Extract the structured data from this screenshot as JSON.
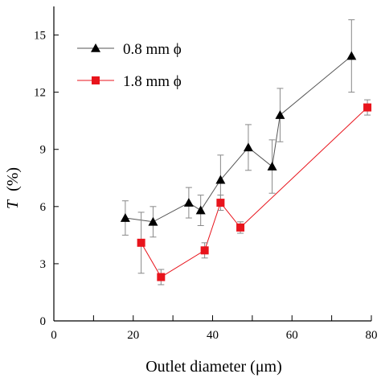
{
  "chart_data": {
    "type": "scatter",
    "xlabel": "Outlet diameter (μm)",
    "ylabel_italic": "T",
    "ylabel_unit": "(%)",
    "xlim": [
      0,
      80
    ],
    "ylim": [
      0,
      16.5
    ],
    "xticks": [
      0,
      20,
      40,
      60,
      80
    ],
    "xminor": [
      10,
      30,
      50,
      70
    ],
    "yticks": [
      0,
      3,
      6,
      9,
      12,
      15
    ],
    "grid": false,
    "legend_position": "top-left",
    "series": [
      {
        "name": "0.8 mm ϕ",
        "color": "#000000",
        "line_color": "#555555",
        "marker": "triangle",
        "points": [
          {
            "x": 18,
            "y": 5.4,
            "err": 0.9
          },
          {
            "x": 25,
            "y": 5.2,
            "err": 0.8
          },
          {
            "x": 34,
            "y": 6.2,
            "err": 0.8
          },
          {
            "x": 37,
            "y": 5.8,
            "err": 0.8
          },
          {
            "x": 42,
            "y": 7.4,
            "err": 1.3
          },
          {
            "x": 49,
            "y": 9.1,
            "err": 1.2
          },
          {
            "x": 55,
            "y": 8.1,
            "err": 1.4
          },
          {
            "x": 57,
            "y": 10.8,
            "err": 1.4
          },
          {
            "x": 75,
            "y": 13.9,
            "err": 1.9
          }
        ]
      },
      {
        "name": "1.8 mm ϕ",
        "color": "#e8141c",
        "line_color": "#e8141c",
        "marker": "square",
        "points": [
          {
            "x": 22,
            "y": 4.1,
            "err": 1.6
          },
          {
            "x": 27,
            "y": 2.3,
            "err": 0.4
          },
          {
            "x": 38,
            "y": 3.7,
            "err": 0.4
          },
          {
            "x": 42,
            "y": 6.2,
            "err": 0.4
          },
          {
            "x": 47,
            "y": 4.9,
            "err": 0.3
          },
          {
            "x": 79,
            "y": 11.2,
            "err": 0.4
          }
        ]
      }
    ]
  }
}
